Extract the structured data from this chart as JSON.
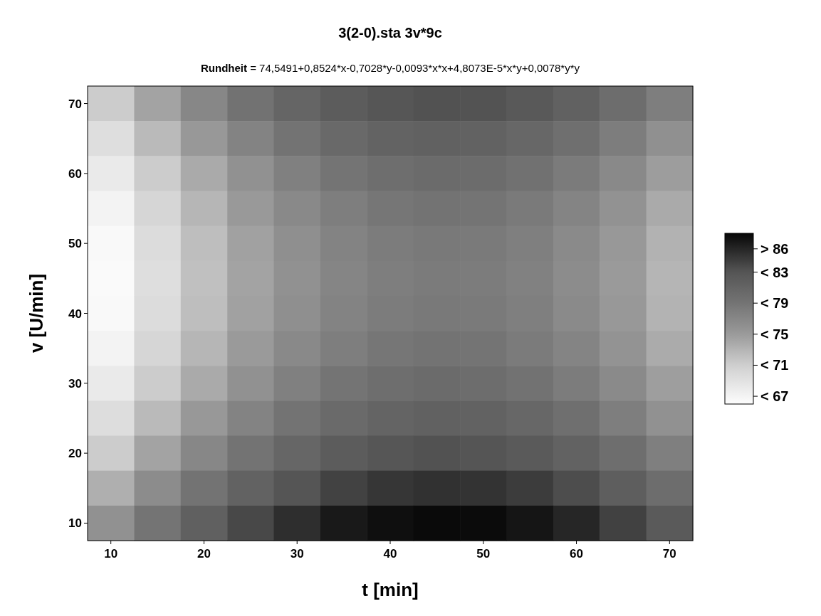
{
  "chart_data": {
    "type": "heatmap",
    "title": "3(2-0).sta 3v*9c",
    "subtitle": "Rundheit = 74,5491+0,8524*x-0,7028*y-0,0093*x*x+4,8073E-5*x*y+0,0078*y*y",
    "xlabel": "t [min]",
    "ylabel": "v [U/min]",
    "categories": [
      "10",
      null,
      "20",
      null,
      "30",
      null,
      "40",
      null,
      "50",
      null,
      "60",
      null,
      "70"
    ],
    "y_categories": [
      "70",
      null,
      "60",
      null,
      "50",
      null,
      "40",
      null,
      "30",
      null,
      "20",
      null,
      "10"
    ],
    "cells": [
      [
        71.2,
        74.3,
        77.0,
        79.2,
        80.9,
        82.1,
        82.9,
        83.2,
        83.1,
        82.5,
        81.4,
        79.9,
        77.9
      ],
      [
        69.4,
        72.6,
        75.2,
        77.4,
        79.1,
        80.4,
        81.2,
        81.5,
        81.3,
        80.7,
        79.7,
        78.1,
        76.1
      ],
      [
        68.1,
        71.2,
        73.8,
        76.0,
        77.7,
        79.0,
        79.8,
        80.1,
        80.0,
        79.4,
        78.3,
        76.8,
        74.8
      ],
      [
        67.1,
        70.2,
        72.9,
        75.1,
        76.8,
        78.0,
        78.8,
        79.1,
        79.0,
        78.4,
        77.3,
        75.8,
        73.8
      ],
      [
        66.5,
        69.6,
        72.3,
        74.5,
        76.2,
        77.4,
        78.2,
        78.5,
        78.4,
        77.8,
        76.7,
        75.2,
        73.2
      ],
      [
        66.3,
        69.4,
        72.1,
        74.3,
        76.0,
        77.2,
        78.0,
        78.3,
        78.2,
        77.6,
        76.5,
        75.0,
        73.0
      ],
      [
        66.5,
        69.6,
        72.3,
        74.5,
        76.2,
        77.4,
        78.2,
        78.5,
        78.4,
        77.8,
        76.7,
        75.2,
        73.1
      ],
      [
        67.1,
        70.2,
        72.9,
        75.0,
        76.8,
        78.0,
        78.8,
        79.1,
        79.0,
        78.3,
        77.3,
        75.7,
        73.7
      ],
      [
        68.1,
        71.2,
        73.8,
        76.0,
        77.7,
        79.0,
        79.8,
        80.1,
        79.9,
        79.3,
        78.2,
        76.7,
        74.7
      ],
      [
        69.5,
        72.6,
        75.2,
        77.4,
        79.1,
        80.3,
        81.1,
        81.4,
        81.3,
        80.7,
        79.6,
        78.0,
        76.0
      ],
      [
        71.2,
        74.3,
        77.0,
        79.1,
        80.8,
        82.1,
        82.9,
        83.2,
        83.0,
        82.4,
        81.3,
        79.8,
        77.8
      ],
      [
        73.4,
        76.5,
        79.1,
        81.3,
        83.0,
        84.2,
        85.0,
        85.3,
        85.2,
        84.6,
        83.5,
        81.9,
        79.9
      ],
      [
        75.9,
        79.0,
        81.6,
        83.8,
        85.5,
        86.8,
        87.5,
        87.8,
        87.7,
        87.1,
        86.0,
        84.3,
        82.4
      ]
    ],
    "cticks": [
      {
        "value": 86,
        "label": "> 86"
      },
      {
        "value": 83,
        "label": "< 83"
      },
      {
        "value": 79,
        "label": "< 79"
      },
      {
        "value": 75,
        "label": "< 75"
      },
      {
        "value": 71,
        "label": "< 71"
      },
      {
        "value": 67,
        "label": "< 67"
      }
    ],
    "clim": [
      66,
      88
    ],
    "colors": [
      "#262626",
      "#555555",
      "#747474",
      "#9a9a9a",
      "#cfcfcf",
      "#f4f4f4"
    ]
  }
}
